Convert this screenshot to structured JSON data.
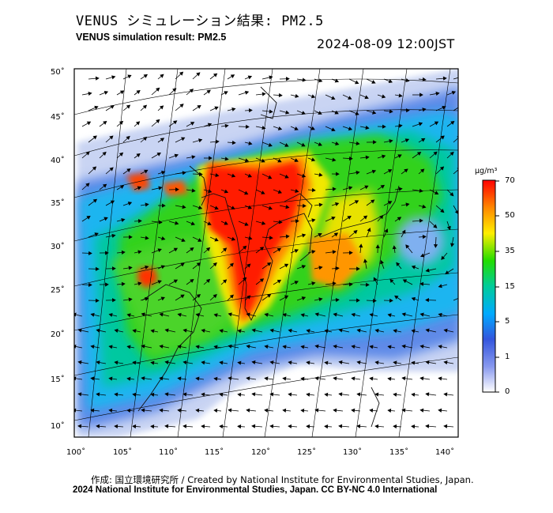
{
  "title_ja": "VENUS シミュレーション結果: PM2.5",
  "title_en": "VENUS simulation result: PM2.5",
  "datetime": "2024-08-09 12:00JST",
  "lat_labels": [
    "50˚",
    "45˚",
    "40˚",
    "35˚",
    "30˚",
    "25˚",
    "20˚",
    "15˚",
    "10˚"
  ],
  "lon_labels": [
    "100˚",
    "105˚",
    "110˚",
    "115˚",
    "120˚",
    "125˚",
    "130˚",
    "135˚",
    "140˚"
  ],
  "colorbar": {
    "unit": "μg/m³",
    "labels": [
      "70",
      "50",
      "35",
      "15",
      "5",
      "1",
      "0"
    ],
    "colors": [
      "#ff0000",
      "#ff8800",
      "#ffee00",
      "#22dd00",
      "#00cc99",
      "#00aaff",
      "#3355dd",
      "#8899ee",
      "#ffffff"
    ]
  },
  "footer": {
    "credit": "作成: 国立環境研究所 / Created by National Institute for Environmental Studies, Japan.",
    "license": "2024 National Institute for Environmental Studies, Japan. CC BY-NC 4.0 International"
  }
}
